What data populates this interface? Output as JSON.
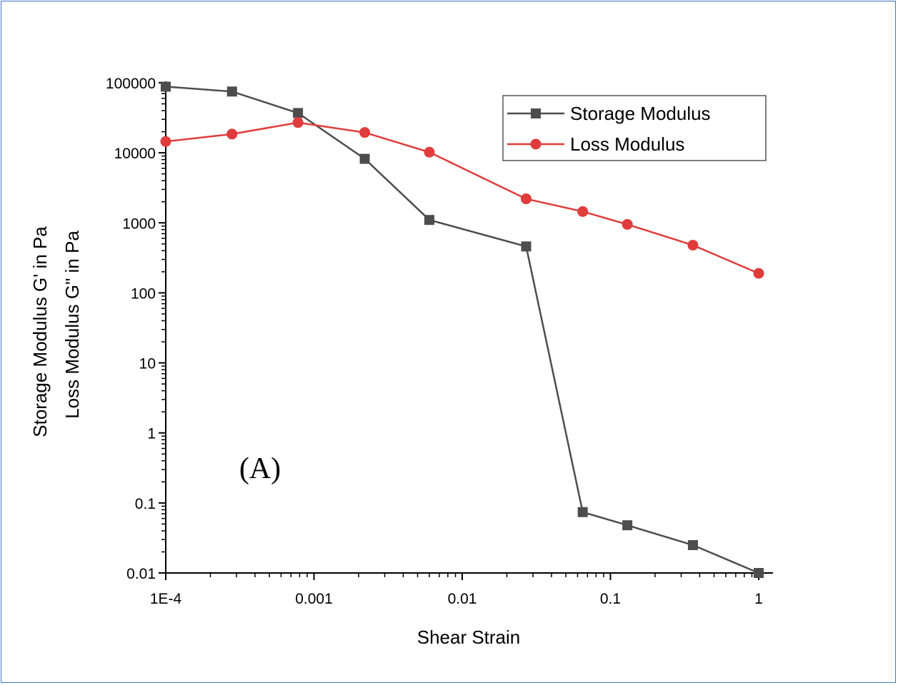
{
  "chart_data": {
    "type": "line",
    "xlabel": "Shear Strain",
    "ylabel_line1": "Storage Modulus G' in Pa",
    "ylabel_line2": "Loss Modulus G\" in Pa",
    "x_scale": "log",
    "y_scale": "log",
    "xlim": [
      0.0001,
      1
    ],
    "ylim": [
      0.01,
      100000
    ],
    "x_ticks": [
      0.0001,
      0.001,
      0.01,
      0.1,
      1
    ],
    "x_tick_labels": [
      "1E-4",
      "0.001",
      "0.01",
      "0.1",
      "1"
    ],
    "y_ticks": [
      0.01,
      0.1,
      1,
      10,
      100,
      1000,
      10000,
      100000
    ],
    "y_tick_labels": [
      "0.01",
      "0.1",
      "1",
      "10",
      "100",
      "1000",
      "10000",
      "100000"
    ],
    "grid": false,
    "legend_position": "top-right",
    "annotation": "(A)",
    "series": [
      {
        "name": "Storage Modulus",
        "color": "#4d4d4d",
        "marker": "square",
        "x": [
          0.0001,
          0.00028,
          0.00078,
          0.0022,
          0.006,
          0.027,
          0.065,
          0.13,
          0.36,
          1
        ],
        "y": [
          88000,
          75000,
          37000,
          8200,
          1100,
          460,
          0.074,
          0.048,
          0.025,
          0.01
        ]
      },
      {
        "name": "Loss Modulus",
        "color": "#e03c3c",
        "marker": "circle",
        "x": [
          0.0001,
          0.00028,
          0.00078,
          0.0022,
          0.006,
          0.027,
          0.065,
          0.13,
          0.36,
          1
        ],
        "y": [
          14500,
          18500,
          27000,
          19500,
          10200,
          2200,
          1450,
          950,
          480,
          190
        ]
      }
    ]
  }
}
